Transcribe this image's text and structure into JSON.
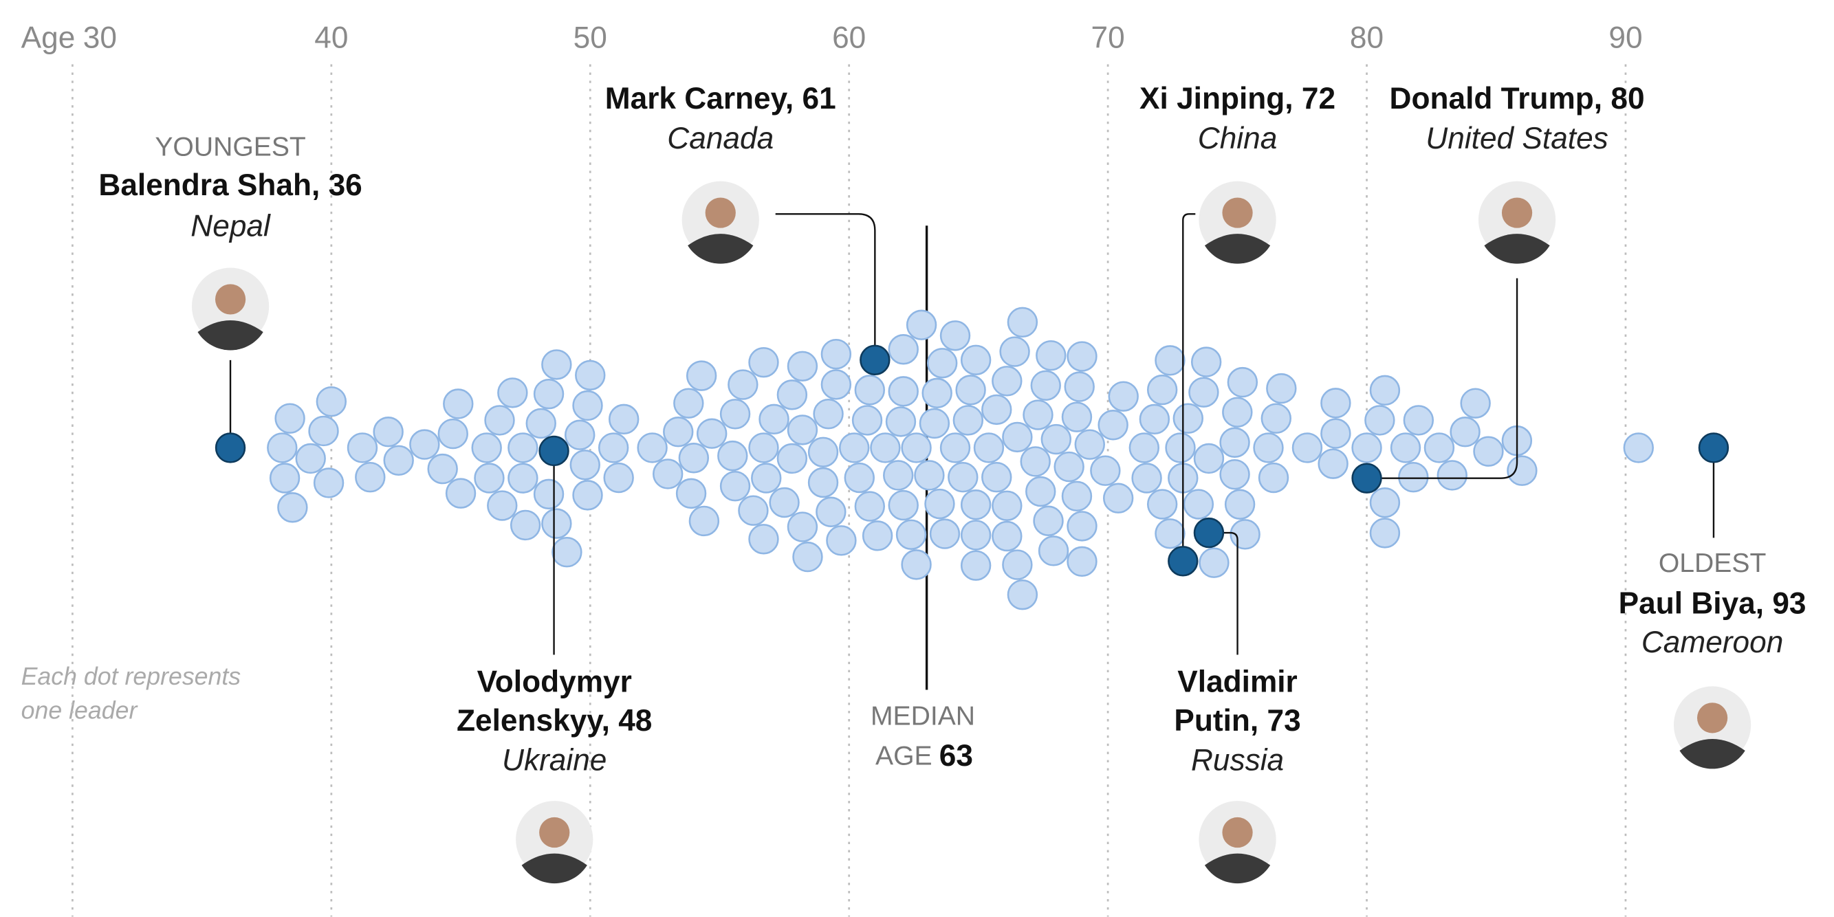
{
  "chart_data": {
    "type": "beeswarm",
    "axis_label": "Age",
    "xlim": [
      27.2,
      98.05
    ],
    "xticks": [
      30,
      40,
      50,
      60,
      70,
      80,
      90
    ],
    "grid": true,
    "color": "#c7dbf3",
    "highlight_color": "#1b6399",
    "note": [
      "Each dot represents",
      "one leader"
    ],
    "median": {
      "label_lines": [
        "MEDIAN",
        "AGE"
      ],
      "value": 63
    },
    "values": [
      38.1,
      38.2,
      38.4,
      38.5,
      39.2,
      39.7,
      40.0,
      39.9,
      41.2,
      41.5,
      42.2,
      42.6,
      43.6,
      44.3,
      44.7,
      44.9,
      45.0,
      46.0,
      46.1,
      46.5,
      46.6,
      47.0,
      47.4,
      47.4,
      47.5,
      48.1,
      48.4,
      48.4,
      48.7,
      48.7,
      49.1,
      49.6,
      49.8,
      49.9,
      49.9,
      50.0,
      50.9,
      51.1,
      51.3,
      52.4,
      53.0,
      53.4,
      53.9,
      53.8,
      54.0,
      54.3,
      54.4,
      54.7,
      55.5,
      55.6,
      55.6,
      55.9,
      56.3,
      56.7,
      56.7,
      56.7,
      56.8,
      57.1,
      57.5,
      57.8,
      57.8,
      58.2,
      58.2,
      58.2,
      58.4,
      59.0,
      59.0,
      59.2,
      59.3,
      59.5,
      59.5,
      59.7,
      60.2,
      60.4,
      60.7,
      60.8,
      60.8,
      61.1,
      61.4,
      61.9,
      62.0,
      62.1,
      62.1,
      62.1,
      62.4,
      62.6,
      62.6,
      62.8,
      63.1,
      63.3,
      63.4,
      63.5,
      63.6,
      63.7,
      64.1,
      64.1,
      64.4,
      64.6,
      64.7,
      64.9,
      64.9,
      64.9,
      64.9,
      65.4,
      65.7,
      65.7,
      66.1,
      66.1,
      66.1,
      66.4,
      66.5,
      66.5,
      66.7,
      66.7,
      67.2,
      67.3,
      67.4,
      67.6,
      67.7,
      67.8,
      67.9,
      68.0,
      68.5,
      68.8,
      68.8,
      68.9,
      69.0,
      69.0,
      69.0,
      69.3,
      69.9,
      70.2,
      70.4,
      70.6,
      71.4,
      71.5,
      71.8,
      72.1,
      72.1,
      72.4,
      72.4,
      72.8,
      72.9,
      73.1,
      73.5,
      73.7,
      73.8,
      73.9,
      74.1,
      74.9,
      74.9,
      75.0,
      75.1,
      75.2,
      75.3,
      76.2,
      76.4,
      76.5,
      76.7,
      77.7,
      78.7,
      78.8,
      78.8,
      80.0,
      80.5,
      80.7,
      80.7,
      80.7,
      81.5,
      81.8,
      82.0,
      82.8,
      83.3,
      83.8,
      84.2,
      84.7,
      85.8,
      86.0,
      90.5
    ],
    "highlights": [
      {
        "tag": "YOUNGEST",
        "name_lines": [
          "Balendra Shah, 36"
        ],
        "country": "Nepal",
        "value": 36.1
      },
      {
        "name_lines": [
          "Mark Carney, 61"
        ],
        "country": "Canada",
        "value": 61
      },
      {
        "name_lines": [
          "Xi Jinping, 72"
        ],
        "country": "China",
        "value": 72.9
      },
      {
        "name_lines": [
          "Donald Trump, 80"
        ],
        "country": "United States",
        "value": 80
      },
      {
        "name_lines": [
          "Volodymyr",
          "Zelenskyy, 48"
        ],
        "country": "Ukraine",
        "value": 48.6
      },
      {
        "name_lines": [
          "Vladimir",
          "Putin, 73"
        ],
        "country": "Russia",
        "value": 73.9
      },
      {
        "tag": "OLDEST",
        "name_lines": [
          "Paul Biya, 93"
        ],
        "country": "Cameroon",
        "value": 93.4
      }
    ]
  }
}
